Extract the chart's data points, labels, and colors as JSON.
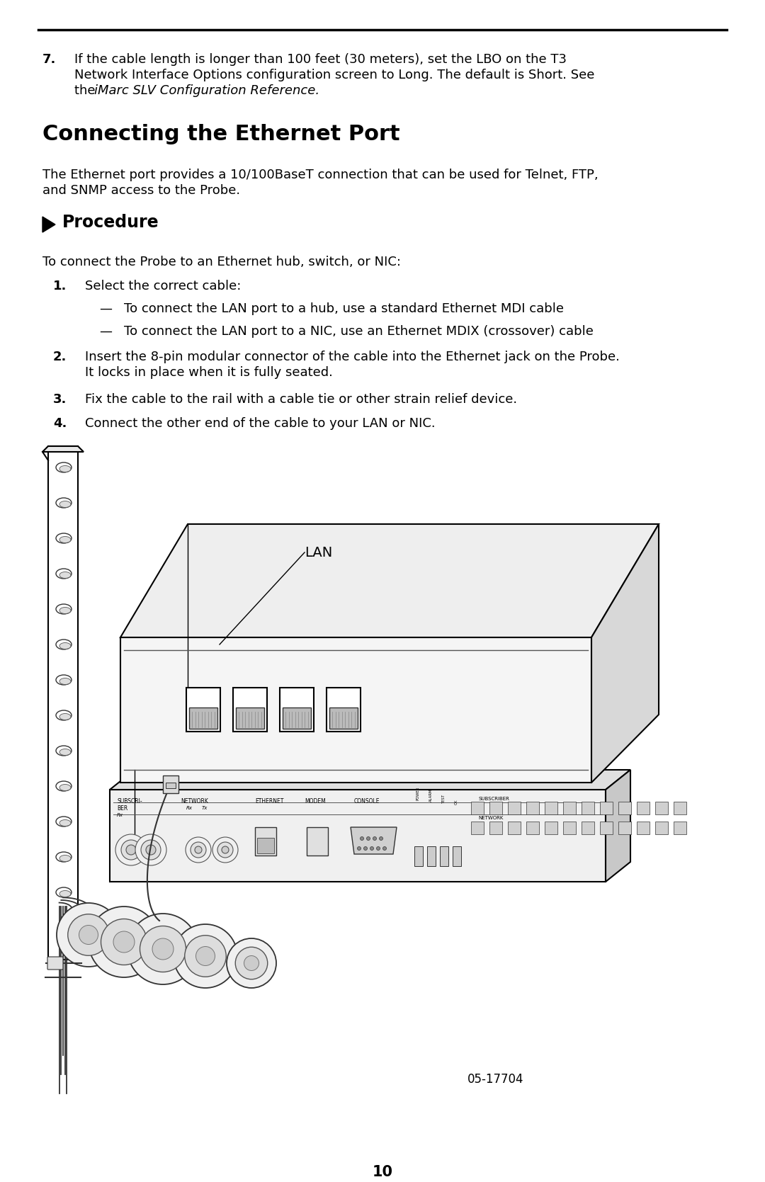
{
  "background_color": "#ffffff",
  "rule_color": "#000000",
  "text_color": "#000000",
  "section_number": "7.",
  "section_text_line1": "If the cable length is longer than 100 feet (30 meters), set the LBO on the T3",
  "section_text_line2": "Network Interface Options configuration screen to Long. The default is Short. See",
  "section_text_line3": "the ",
  "section_text_italic": "iMarc SLV Configuration Reference.",
  "heading": "Connecting the Ethernet Port",
  "intro_line1": "The Ethernet port provides a 10/100BaseT connection that can be used for Telnet, FTP,",
  "intro_line2": "and SNMP access to the Probe.",
  "procedure_label": "Procedure",
  "proc_intro": "To connect the Probe to an Ethernet hub, switch, or NIC:",
  "step1_label": "1.",
  "step1_text": "Select the correct cable:",
  "bullet1_text": "To connect the LAN port to a hub, use a standard Ethernet MDI cable",
  "bullet2_text": "To connect the LAN port to a NIC, use an Ethernet MDIX (crossover) cable",
  "step2_label": "2.",
  "step2_line1": "Insert the 8-pin modular connector of the cable into the Ethernet jack on the Probe.",
  "step2_line2": "It locks in place when it is fully seated.",
  "step3_label": "3.",
  "step3_text": "Fix the cable to the rail with a cable tie or other strain relief device.",
  "step4_label": "4.",
  "step4_text": "Connect the other end of the cable to your LAN or NIC.",
  "lan_label": "LAN",
  "figure_number": "05-17704",
  "page_number": "10",
  "base_font_size": 13,
  "heading_font_size": 22,
  "procedure_font_size": 17
}
